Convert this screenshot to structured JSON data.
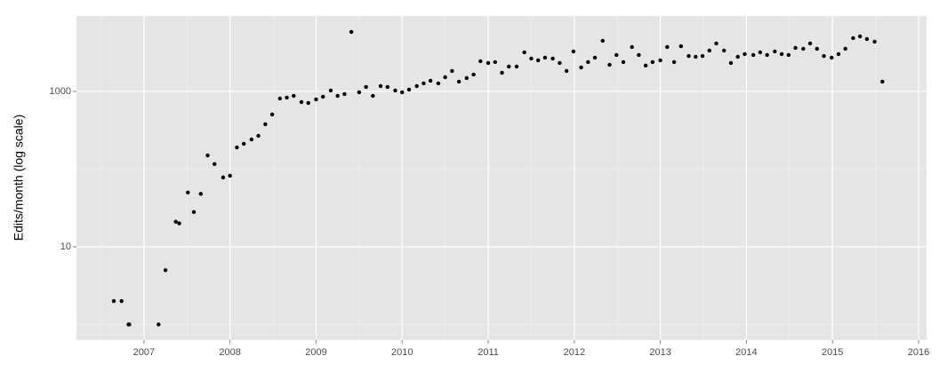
{
  "chart_data": {
    "type": "scatter",
    "y_label": "Edits/month (log scale)",
    "ylog": true,
    "grid": true,
    "color": "#000000",
    "xlim": [
      2006.216,
      2016.093
    ],
    "ylim": [
      0.63,
      9350
    ],
    "xticks": [
      2007,
      2008,
      2009,
      2010,
      2011,
      2012,
      2013,
      2014,
      2015,
      2016
    ],
    "yticks": [
      10,
      1000
    ],
    "xminor": [
      2006.5,
      2007.5,
      2008.5,
      2009.5,
      2010.5,
      2011.5,
      2012.5,
      2013.5,
      2014.5,
      2015.5
    ],
    "yminor": [
      1,
      100
    ],
    "x": [
      2006.65,
      2006.74,
      2006.82,
      2006.83,
      2007.17,
      2007.25,
      2007.37,
      2007.41,
      2007.51,
      2007.58,
      2007.66,
      2007.74,
      2007.82,
      2007.92,
      2008.0,
      2008.08,
      2008.16,
      2008.25,
      2008.33,
      2008.41,
      2008.49,
      2008.58,
      2008.66,
      2008.74,
      2008.83,
      2008.91,
      2009.0,
      2009.08,
      2009.17,
      2009.25,
      2009.33,
      2009.41,
      2009.5,
      2009.58,
      2009.66,
      2009.75,
      2009.83,
      2009.92,
      2010.0,
      2010.08,
      2010.17,
      2010.25,
      2010.33,
      2010.42,
      2010.5,
      2010.58,
      2010.66,
      2010.75,
      2010.83,
      2010.91,
      2011.0,
      2011.08,
      2011.16,
      2011.24,
      2011.33,
      2011.42,
      2011.5,
      2011.58,
      2011.66,
      2011.75,
      2011.83,
      2011.91,
      2011.99,
      2012.08,
      2012.16,
      2012.24,
      2012.33,
      2012.41,
      2012.49,
      2012.57,
      2012.67,
      2012.75,
      2012.83,
      2012.91,
      2013.0,
      2013.08,
      2013.16,
      2013.24,
      2013.33,
      2013.41,
      2013.49,
      2013.57,
      2013.65,
      2013.74,
      2013.82,
      2013.9,
      2013.98,
      2014.08,
      2014.16,
      2014.24,
      2014.33,
      2014.41,
      2014.49,
      2014.57,
      2014.66,
      2014.74,
      2014.82,
      2014.9,
      2014.99,
      2015.07,
      2015.15,
      2015.24,
      2015.32,
      2015.4,
      2015.49,
      2015.58
    ],
    "values": [
      2,
      2,
      1,
      1,
      1,
      5,
      21,
      20,
      50,
      28,
      48,
      150,
      116,
      78,
      82,
      190,
      212,
      241,
      268,
      378,
      505,
      811,
      832,
      877,
      730,
      710,
      789,
      854,
      1027,
      877,
      924,
      5830,
      974,
      1141,
      877,
      1171,
      1141,
      1027,
      974,
      1054,
      1171,
      1268,
      1371,
      1268,
      1523,
      1832,
      1336,
      1484,
      1648,
      2450,
      2320,
      2383,
      1737,
      2090,
      2090,
      3185,
      2650,
      2510,
      2718,
      2650,
      2320,
      1832,
      3264,
      2035,
      2383,
      2718,
      4480,
      2200,
      2940,
      2383,
      3724,
      2940,
      2150,
      2383,
      2510,
      3724,
      2383,
      3820,
      2860,
      2790,
      2860,
      3354,
      4140,
      3354,
      2320,
      2790,
      3020,
      2940,
      3185,
      2940,
      3264,
      3020,
      2940,
      3630,
      3540,
      4140,
      3540,
      2860,
      2718,
      3020,
      3540,
      4850,
      5110,
      4720,
      4370,
      1336
    ]
  }
}
